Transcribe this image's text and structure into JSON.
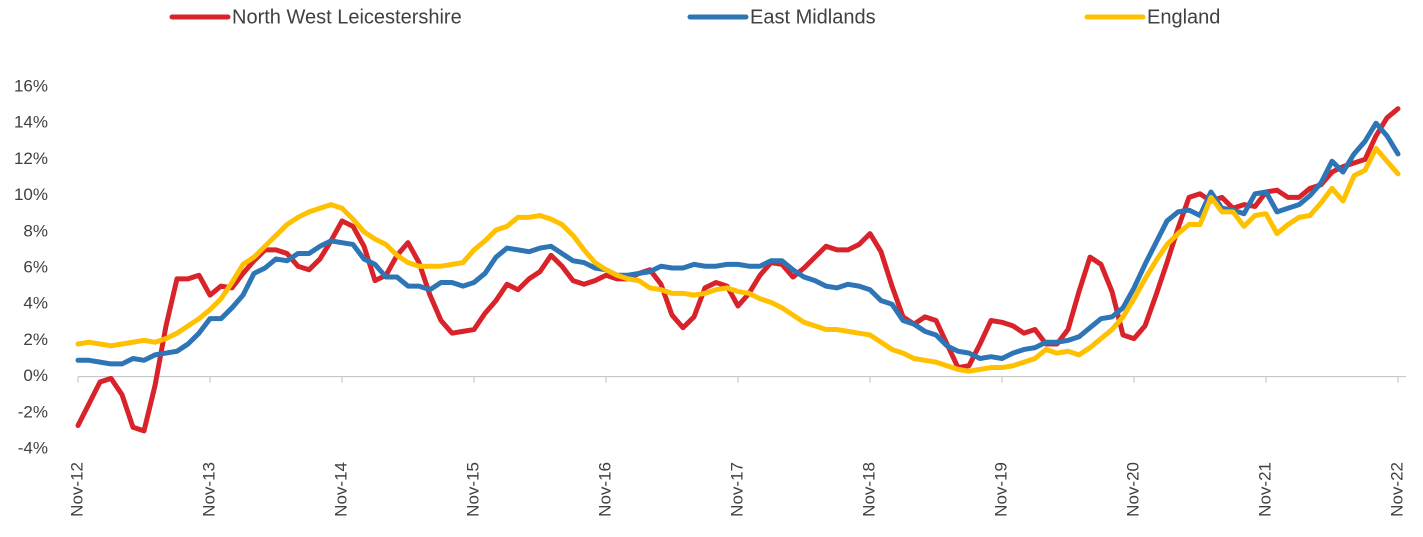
{
  "chart_data": {
    "type": "line",
    "categories": [
      "Nov-12",
      null,
      null,
      null,
      null,
      null,
      null,
      null,
      null,
      null,
      null,
      null,
      "Nov-13",
      null,
      null,
      null,
      null,
      null,
      null,
      null,
      null,
      null,
      null,
      null,
      "Nov-14",
      null,
      null,
      null,
      null,
      null,
      null,
      null,
      null,
      null,
      null,
      null,
      "Nov-15",
      null,
      null,
      null,
      null,
      null,
      null,
      null,
      null,
      null,
      null,
      null,
      "Nov-16",
      null,
      null,
      null,
      null,
      null,
      null,
      null,
      null,
      null,
      null,
      null,
      "Nov-17",
      null,
      null,
      null,
      null,
      null,
      null,
      null,
      null,
      null,
      null,
      null,
      "Nov-18",
      null,
      null,
      null,
      null,
      null,
      null,
      null,
      null,
      null,
      null,
      null,
      "Nov-19",
      null,
      null,
      null,
      null,
      null,
      null,
      null,
      null,
      null,
      null,
      null,
      "Nov-20",
      null,
      null,
      null,
      null,
      null,
      null,
      null,
      null,
      null,
      null,
      null,
      "Nov-21",
      null,
      null,
      null,
      null,
      null,
      null,
      null,
      null,
      null,
      null,
      null,
      "Nov-22"
    ],
    "series": [
      {
        "name": "North West Leicestershire",
        "color": "#d9232a",
        "values": [
          -2.7,
          -1.5,
          -0.3,
          -0.1,
          -1.0,
          -2.8,
          -3.0,
          -0.5,
          2.8,
          5.4,
          5.4,
          5.6,
          4.5,
          5.0,
          4.9,
          5.7,
          6.4,
          7.0,
          7.0,
          6.8,
          6.1,
          5.9,
          6.5,
          7.5,
          8.6,
          8.3,
          7.2,
          5.3,
          5.6,
          6.7,
          7.4,
          6.3,
          4.5,
          3.1,
          2.4,
          2.5,
          2.6,
          3.5,
          4.2,
          5.1,
          4.8,
          5.4,
          5.8,
          6.7,
          6.1,
          5.3,
          5.1,
          5.3,
          5.6,
          5.4,
          5.4,
          5.7,
          5.9,
          5.1,
          3.4,
          2.7,
          3.3,
          4.9,
          5.2,
          5.0,
          3.9,
          4.6,
          5.6,
          6.3,
          6.2,
          5.5,
          6.0,
          6.6,
          7.2,
          7.0,
          7.0,
          7.3,
          7.9,
          6.9,
          5.0,
          3.3,
          2.9,
          3.3,
          3.1,
          1.8,
          0.5,
          0.6,
          1.8,
          3.1,
          3.0,
          2.8,
          2.4,
          2.6,
          1.8,
          1.8,
          2.6,
          4.7,
          6.6,
          6.2,
          4.7,
          2.3,
          2.1,
          2.8,
          4.5,
          6.3,
          8.2,
          9.9,
          10.1,
          9.7,
          9.9,
          9.3,
          9.5,
          9.4,
          10.2,
          10.3,
          9.9,
          9.9,
          10.4,
          10.6,
          11.3,
          11.6,
          11.8,
          12.0,
          13.3,
          14.3,
          14.8
        ]
      },
      {
        "name": "East Midlands",
        "color": "#2e75b6",
        "values": [
          0.9,
          0.9,
          0.8,
          0.7,
          0.7,
          1.0,
          0.9,
          1.2,
          1.3,
          1.4,
          1.8,
          2.4,
          3.2,
          3.2,
          3.8,
          4.5,
          5.7,
          6.0,
          6.5,
          6.4,
          6.8,
          6.8,
          7.2,
          7.5,
          7.4,
          7.3,
          6.5,
          6.2,
          5.5,
          5.5,
          5.0,
          5.0,
          4.8,
          5.2,
          5.2,
          5.0,
          5.2,
          5.7,
          6.6,
          7.1,
          7.0,
          6.9,
          7.1,
          7.2,
          6.8,
          6.4,
          6.3,
          6.0,
          5.9,
          5.6,
          5.6,
          5.7,
          5.8,
          6.1,
          6.0,
          6.0,
          6.2,
          6.1,
          6.1,
          6.2,
          6.2,
          6.1,
          6.1,
          6.4,
          6.4,
          5.9,
          5.5,
          5.3,
          5.0,
          4.9,
          5.1,
          5.0,
          4.8,
          4.2,
          4.0,
          3.1,
          2.9,
          2.5,
          2.3,
          1.7,
          1.4,
          1.3,
          1.0,
          1.1,
          1.0,
          1.3,
          1.5,
          1.6,
          1.9,
          1.9,
          2.0,
          2.2,
          2.7,
          3.2,
          3.3,
          3.8,
          4.9,
          6.2,
          7.4,
          8.6,
          9.1,
          9.2,
          8.9,
          10.2,
          9.3,
          9.2,
          9.0,
          10.1,
          10.2,
          9.1,
          9.3,
          9.5,
          10.0,
          10.7,
          11.9,
          11.3,
          12.3,
          13.0,
          14.0,
          13.3,
          12.3
        ]
      },
      {
        "name": "England",
        "color": "#ffc000",
        "values": [
          1.8,
          1.9,
          1.8,
          1.7,
          1.8,
          1.9,
          2.0,
          1.9,
          2.1,
          2.4,
          2.8,
          3.2,
          3.7,
          4.3,
          5.2,
          6.2,
          6.6,
          7.2,
          7.8,
          8.4,
          8.8,
          9.1,
          9.3,
          9.5,
          9.3,
          8.7,
          8.0,
          7.6,
          7.3,
          6.7,
          6.3,
          6.1,
          6.1,
          6.1,
          6.2,
          6.3,
          7.0,
          7.5,
          8.1,
          8.3,
          8.8,
          8.8,
          8.9,
          8.7,
          8.4,
          7.8,
          7.0,
          6.3,
          5.9,
          5.6,
          5.4,
          5.3,
          4.9,
          4.8,
          4.6,
          4.6,
          4.5,
          4.6,
          4.8,
          4.9,
          4.7,
          4.6,
          4.3,
          4.1,
          3.8,
          3.4,
          3.0,
          2.8,
          2.6,
          2.6,
          2.5,
          2.4,
          2.3,
          1.9,
          1.5,
          1.3,
          1.0,
          0.9,
          0.8,
          0.6,
          0.4,
          0.3,
          0.4,
          0.5,
          0.5,
          0.6,
          0.8,
          1.0,
          1.5,
          1.3,
          1.4,
          1.2,
          1.6,
          2.1,
          2.6,
          3.3,
          4.3,
          5.4,
          6.4,
          7.3,
          7.9,
          8.4,
          8.4,
          9.9,
          9.1,
          9.1,
          8.3,
          8.9,
          9.0,
          7.9,
          8.4,
          8.8,
          8.9,
          9.6,
          10.4,
          9.7,
          11.1,
          11.4,
          12.6,
          11.9,
          11.2
        ]
      }
    ],
    "ylim": [
      -4,
      16
    ],
    "yticks": [
      {
        "value": -4,
        "label": "-4%"
      },
      {
        "value": -2,
        "label": "-2%"
      },
      {
        "value": 0,
        "label": "0%"
      },
      {
        "value": 2,
        "label": "2%"
      },
      {
        "value": 4,
        "label": "4%"
      },
      {
        "value": 6,
        "label": "6%"
      },
      {
        "value": 8,
        "label": "8%"
      },
      {
        "value": 10,
        "label": "10%"
      },
      {
        "value": 12,
        "label": "12%"
      },
      {
        "value": 14,
        "label": "14%"
      },
      {
        "value": 16,
        "label": "16%"
      }
    ],
    "grid": false,
    "legend": "top"
  }
}
